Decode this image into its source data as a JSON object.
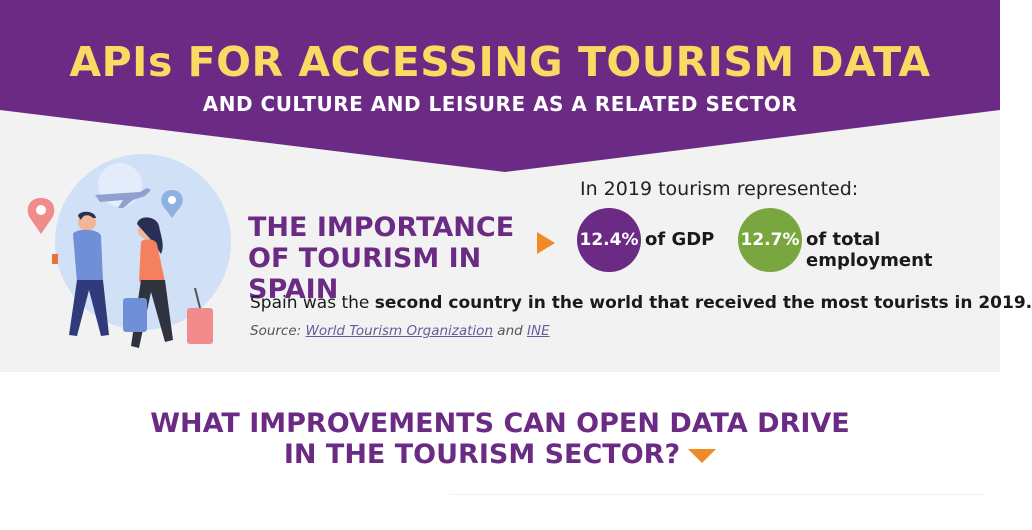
{
  "header": {
    "title": "APIs FOR ACCESSING TOURISM DATA",
    "subtitle": "AND CULTURE AND LEISURE AS A RELATED SECTOR",
    "colors": {
      "band": "#6b2a84",
      "title": "#fbd962"
    }
  },
  "importance": {
    "heading_line1": "THE IMPORTANCE",
    "heading_line2": "OF TOURISM IN SPAIN",
    "represented": "In 2019 tourism represented:",
    "gdp_value": "12.4%",
    "gdp_label": "of GDP",
    "employment_value": "12.7%",
    "employment_label": "of total employment",
    "spain_prefix": "Spain was the ",
    "spain_bold": "second country in the world that received the most tourists in 2019.",
    "source_prefix": "Source: ",
    "source_link1": "World Tourism Organization",
    "source_and": " and ",
    "source_link2": "INE",
    "colors": {
      "gdp": "#6b2a84",
      "employment": "#7aa640",
      "accent": "#f08a24"
    }
  },
  "improvements": {
    "heading_line1": "WHAT IMPROVEMENTS CAN OPEN DATA DRIVE",
    "heading_line2": "IN THE TOURISM SECTOR?"
  },
  "icons": [
    "travelers-illustration-icon",
    "airplane-icon",
    "location-pin-icon",
    "arrow-right-icon",
    "arrow-down-icon"
  ]
}
